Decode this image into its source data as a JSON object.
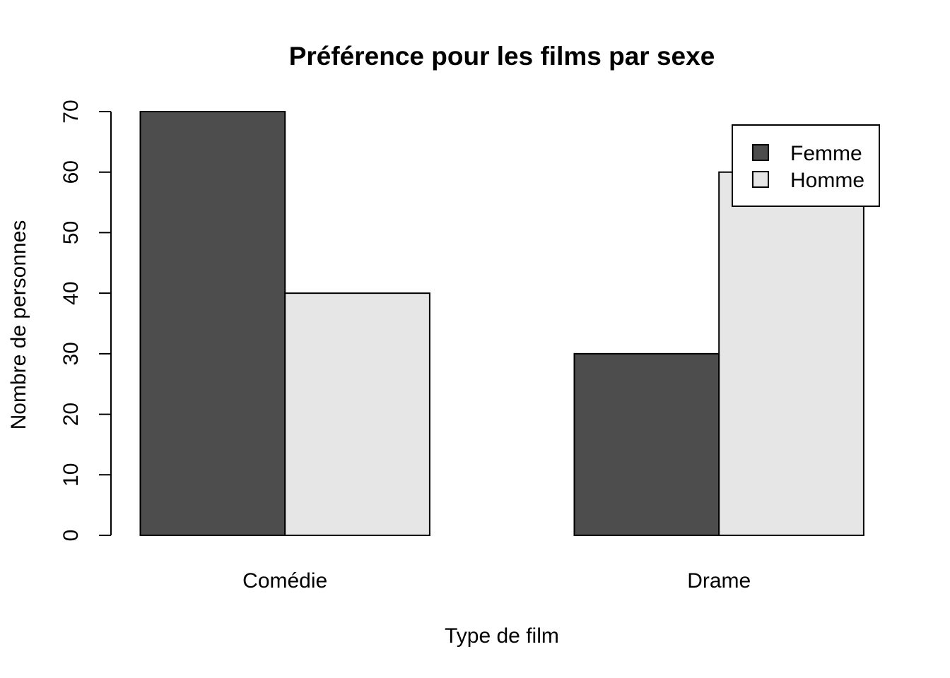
{
  "chart_data": {
    "type": "bar",
    "title": "Préférence pour les films par sexe",
    "xlabel": "Type de film",
    "ylabel": "Nombre de personnes",
    "categories": [
      "Comédie",
      "Drame"
    ],
    "series": [
      {
        "name": "Femme",
        "values": [
          70,
          30
        ],
        "color": "#4d4d4d"
      },
      {
        "name": "Homme",
        "values": [
          40,
          60
        ],
        "color": "#e6e6e6"
      }
    ],
    "ylim": [
      0,
      70
    ],
    "yticks": [
      0,
      10,
      20,
      30,
      40,
      50,
      60,
      70
    ],
    "grid": false,
    "legend_position": "top-right"
  }
}
